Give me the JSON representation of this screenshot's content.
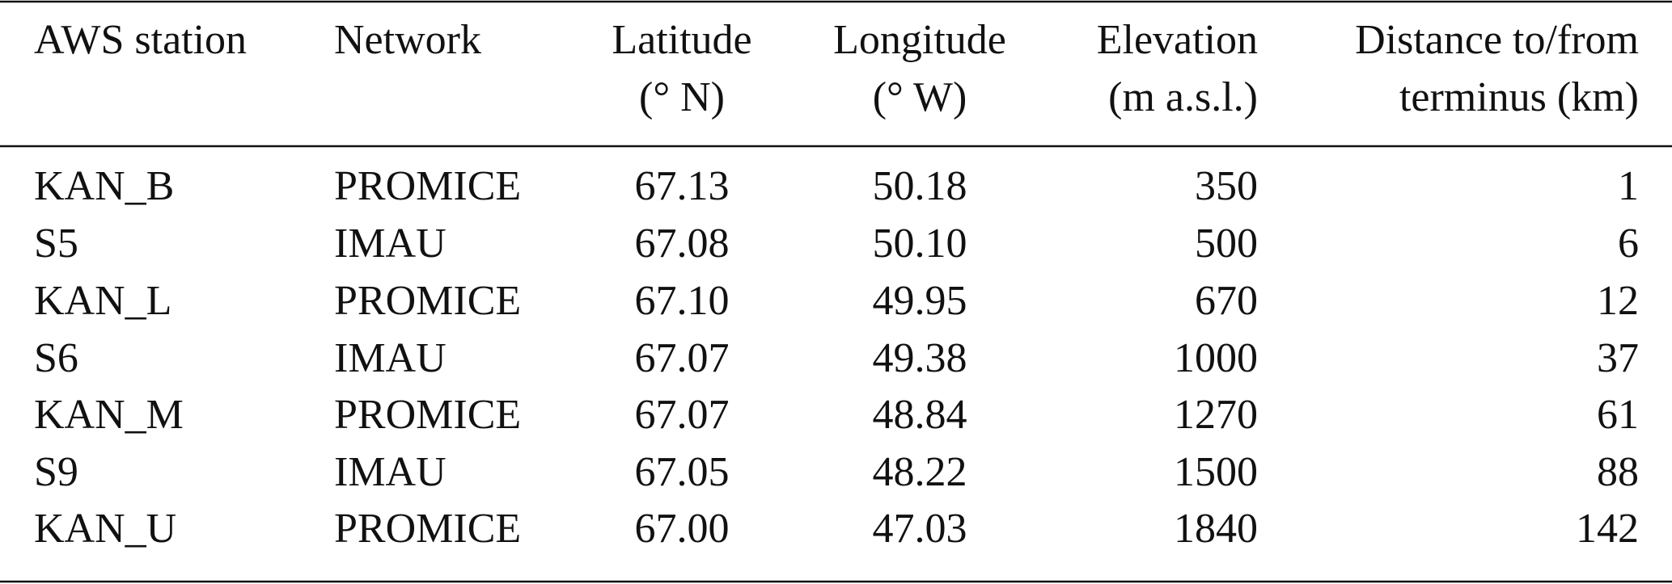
{
  "table": {
    "header": [
      [
        "AWS station"
      ],
      [
        "Network"
      ],
      [
        "Latitude",
        "(° N)"
      ],
      [
        "Longitude",
        "(° W)"
      ],
      [
        "Elevation",
        "(m a.s.l.)"
      ],
      [
        "Distance to/from",
        "terminus (km)"
      ]
    ],
    "rows": [
      [
        "KAN_B",
        "PROMICE",
        "67.13",
        "50.18",
        "350",
        "1"
      ],
      [
        "S5",
        "IMAU",
        "67.08",
        "50.10",
        "500",
        "6"
      ],
      [
        "KAN_L",
        "PROMICE",
        "67.10",
        "49.95",
        "670",
        "12"
      ],
      [
        "S6",
        "IMAU",
        "67.07",
        "49.38",
        "1000",
        "37"
      ],
      [
        "KAN_M",
        "PROMICE",
        "67.07",
        "48.84",
        "1270",
        "61"
      ],
      [
        "S9",
        "IMAU",
        "67.05",
        "48.22",
        "1500",
        "88"
      ],
      [
        "KAN_U",
        "PROMICE",
        "67.00",
        "47.03",
        "1840",
        "142"
      ]
    ]
  }
}
